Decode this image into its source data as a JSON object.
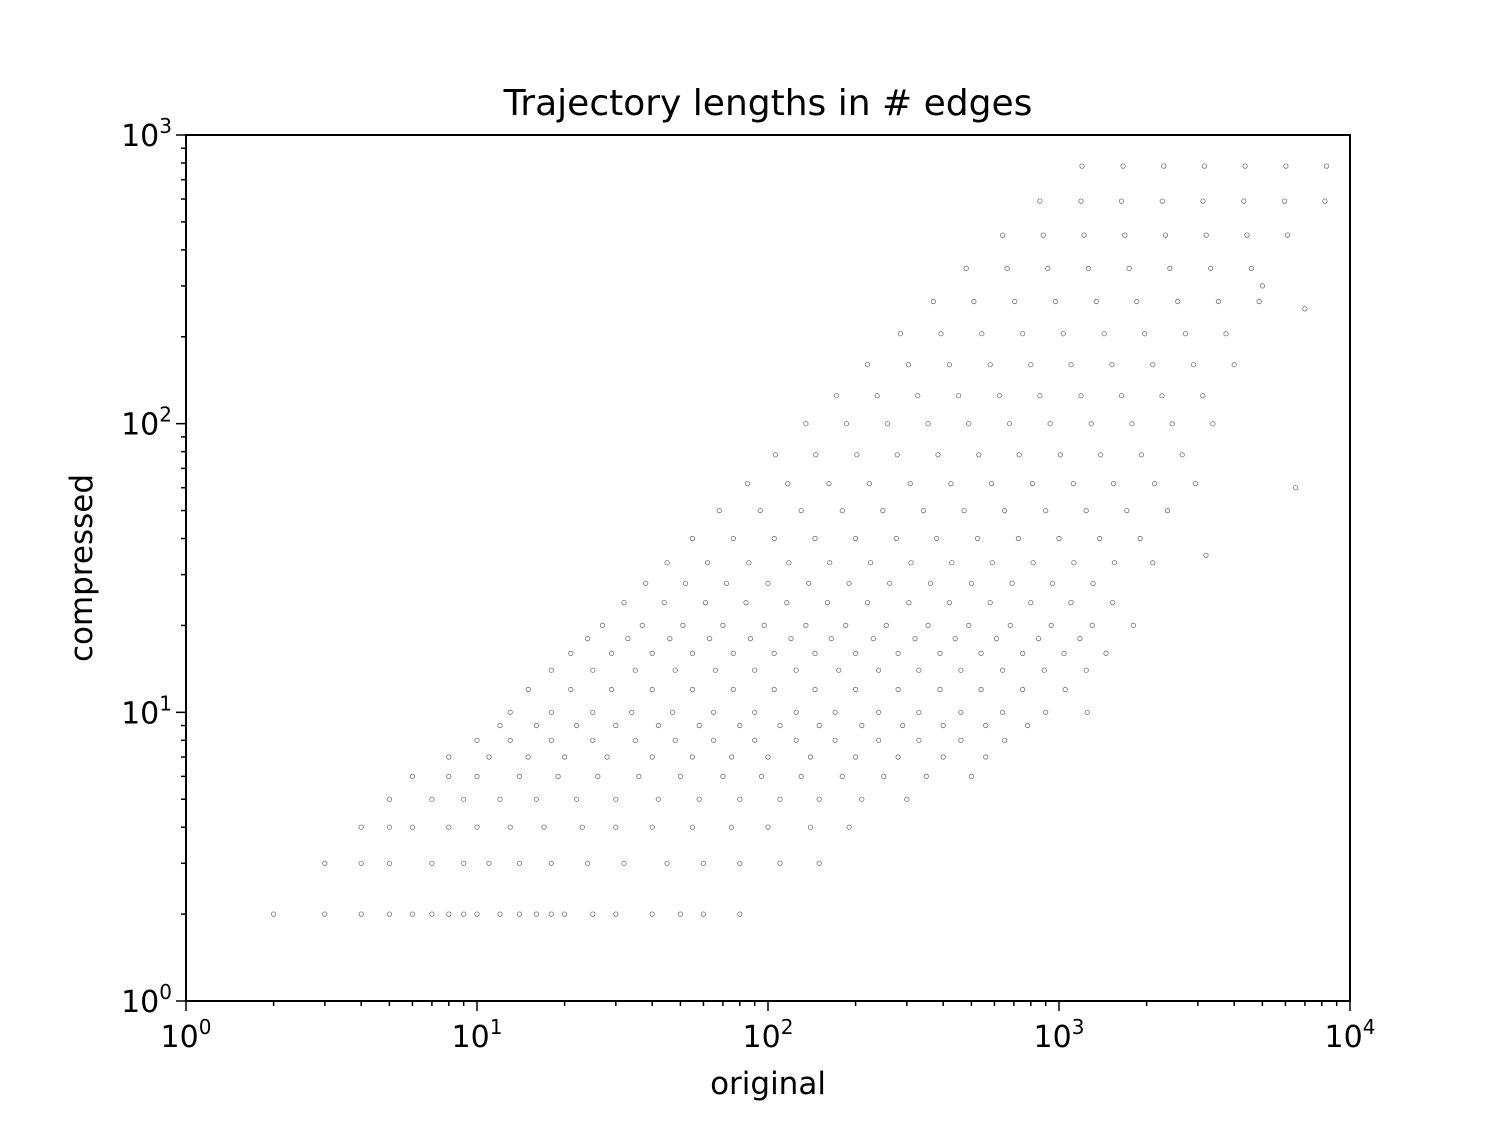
{
  "chart_data": {
    "type": "scatter",
    "title": "Trajectory lengths in # edges",
    "xlabel": "original",
    "ylabel": "compressed",
    "xscale": "log",
    "yscale": "log",
    "xlim": [
      1,
      10000
    ],
    "ylim": [
      1,
      1000
    ],
    "x_ticks": [
      {
        "value": 1,
        "base": "10",
        "exp": "0"
      },
      {
        "value": 10,
        "base": "10",
        "exp": "1"
      },
      {
        "value": 100,
        "base": "10",
        "exp": "2"
      },
      {
        "value": 1000,
        "base": "10",
        "exp": "3"
      },
      {
        "value": 10000,
        "base": "10",
        "exp": "4"
      }
    ],
    "y_ticks": [
      {
        "value": 1,
        "base": "10",
        "exp": "0"
      },
      {
        "value": 10,
        "base": "10",
        "exp": "1"
      },
      {
        "value": 100,
        "base": "10",
        "exp": "2"
      },
      {
        "value": 1000,
        "base": "10",
        "exp": "3"
      }
    ],
    "grid": false,
    "legend": "none",
    "marker_color": "#000000",
    "marker_style": "hollow-circle",
    "points": [
      [
        2,
        2
      ],
      [
        3,
        2
      ],
      [
        4,
        2
      ],
      [
        5,
        2
      ],
      [
        6,
        2
      ],
      [
        7,
        2
      ],
      [
        8,
        2
      ],
      [
        9,
        2
      ],
      [
        10,
        2
      ],
      [
        12,
        2
      ],
      [
        14,
        2
      ],
      [
        16,
        2
      ],
      [
        18,
        2
      ],
      [
        20,
        2
      ],
      [
        25,
        2
      ],
      [
        30,
        2
      ],
      [
        40,
        2
      ],
      [
        50,
        2
      ],
      [
        60,
        2
      ],
      [
        80,
        2
      ],
      [
        3,
        3
      ],
      [
        4,
        3
      ],
      [
        5,
        3
      ],
      [
        7,
        3
      ],
      [
        9,
        3
      ],
      [
        11,
        3
      ],
      [
        14,
        3
      ],
      [
        18,
        3
      ],
      [
        24,
        3
      ],
      [
        32,
        3
      ],
      [
        45,
        3
      ],
      [
        60,
        3
      ],
      [
        80,
        3
      ],
      [
        110,
        3
      ],
      [
        150,
        3
      ],
      [
        4,
        4
      ],
      [
        5,
        4
      ],
      [
        6,
        4
      ],
      [
        8,
        4
      ],
      [
        10,
        4
      ],
      [
        13,
        4
      ],
      [
        17,
        4
      ],
      [
        23,
        4
      ],
      [
        30,
        4
      ],
      [
        40,
        4
      ],
      [
        55,
        4
      ],
      [
        75,
        4
      ],
      [
        100,
        4
      ],
      [
        140,
        4
      ],
      [
        190,
        4
      ],
      [
        5,
        5
      ],
      [
        7,
        5
      ],
      [
        9,
        5
      ],
      [
        12,
        5
      ],
      [
        16,
        5
      ],
      [
        22,
        5
      ],
      [
        30,
        5
      ],
      [
        42,
        5
      ],
      [
        58,
        5
      ],
      [
        80,
        5
      ],
      [
        110,
        5
      ],
      [
        150,
        5
      ],
      [
        210,
        5
      ],
      [
        300,
        5
      ],
      [
        6,
        6
      ],
      [
        8,
        6
      ],
      [
        10,
        6
      ],
      [
        14,
        6
      ],
      [
        19,
        6
      ],
      [
        26,
        6
      ],
      [
        36,
        6
      ],
      [
        50,
        6
      ],
      [
        70,
        6
      ],
      [
        95,
        6
      ],
      [
        130,
        6
      ],
      [
        180,
        6
      ],
      [
        250,
        6
      ],
      [
        350,
        6
      ],
      [
        500,
        6
      ],
      [
        8,
        7
      ],
      [
        11,
        7
      ],
      [
        15,
        7
      ],
      [
        20,
        7
      ],
      [
        28,
        7
      ],
      [
        40,
        7
      ],
      [
        55,
        7
      ],
      [
        75,
        7
      ],
      [
        100,
        7
      ],
      [
        140,
        7
      ],
      [
        200,
        7
      ],
      [
        280,
        7
      ],
      [
        400,
        7
      ],
      [
        560,
        7
      ],
      [
        10,
        8
      ],
      [
        13,
        8
      ],
      [
        18,
        8
      ],
      [
        25,
        8
      ],
      [
        35,
        8
      ],
      [
        48,
        8
      ],
      [
        65,
        8
      ],
      [
        90,
        8
      ],
      [
        125,
        8
      ],
      [
        170,
        8
      ],
      [
        240,
        8
      ],
      [
        330,
        8
      ],
      [
        460,
        8
      ],
      [
        650,
        8
      ],
      [
        12,
        9
      ],
      [
        16,
        9
      ],
      [
        22,
        9
      ],
      [
        30,
        9
      ],
      [
        42,
        9
      ],
      [
        58,
        9
      ],
      [
        80,
        9
      ],
      [
        110,
        9
      ],
      [
        150,
        9
      ],
      [
        210,
        9
      ],
      [
        290,
        9
      ],
      [
        400,
        9
      ],
      [
        560,
        9
      ],
      [
        780,
        9
      ],
      [
        13,
        10
      ],
      [
        18,
        10
      ],
      [
        25,
        10
      ],
      [
        34,
        10
      ],
      [
        47,
        10
      ],
      [
        65,
        10
      ],
      [
        90,
        10
      ],
      [
        125,
        10
      ],
      [
        170,
        10
      ],
      [
        240,
        10
      ],
      [
        330,
        10
      ],
      [
        460,
        10
      ],
      [
        640,
        10
      ],
      [
        900,
        10
      ],
      [
        1250,
        10
      ],
      [
        15,
        12
      ],
      [
        21,
        12
      ],
      [
        29,
        12
      ],
      [
        40,
        12
      ],
      [
        55,
        12
      ],
      [
        76,
        12
      ],
      [
        105,
        12
      ],
      [
        145,
        12
      ],
      [
        200,
        12
      ],
      [
        280,
        12
      ],
      [
        390,
        12
      ],
      [
        540,
        12
      ],
      [
        750,
        12
      ],
      [
        1050,
        12
      ],
      [
        18,
        14
      ],
      [
        25,
        14
      ],
      [
        35,
        14
      ],
      [
        48,
        14
      ],
      [
        66,
        14
      ],
      [
        90,
        14
      ],
      [
        125,
        14
      ],
      [
        175,
        14
      ],
      [
        240,
        14
      ],
      [
        330,
        14
      ],
      [
        460,
        14
      ],
      [
        640,
        14
      ],
      [
        890,
        14
      ],
      [
        1240,
        14
      ],
      [
        21,
        16
      ],
      [
        29,
        16
      ],
      [
        40,
        16
      ],
      [
        55,
        16
      ],
      [
        76,
        16
      ],
      [
        105,
        16
      ],
      [
        145,
        16
      ],
      [
        200,
        16
      ],
      [
        280,
        16
      ],
      [
        390,
        16
      ],
      [
        540,
        16
      ],
      [
        750,
        16
      ],
      [
        1040,
        16
      ],
      [
        1450,
        16
      ],
      [
        24,
        18
      ],
      [
        33,
        18
      ],
      [
        46,
        18
      ],
      [
        63,
        18
      ],
      [
        87,
        18
      ],
      [
        120,
        18
      ],
      [
        165,
        18
      ],
      [
        230,
        18
      ],
      [
        320,
        18
      ],
      [
        440,
        18
      ],
      [
        610,
        18
      ],
      [
        850,
        18
      ],
      [
        1180,
        18
      ],
      [
        27,
        20
      ],
      [
        37,
        20
      ],
      [
        51,
        20
      ],
      [
        70,
        20
      ],
      [
        97,
        20
      ],
      [
        135,
        20
      ],
      [
        185,
        20
      ],
      [
        255,
        20
      ],
      [
        355,
        20
      ],
      [
        490,
        20
      ],
      [
        680,
        20
      ],
      [
        940,
        20
      ],
      [
        1300,
        20
      ],
      [
        1800,
        20
      ],
      [
        32,
        24
      ],
      [
        44,
        24
      ],
      [
        61,
        24
      ],
      [
        84,
        24
      ],
      [
        116,
        24
      ],
      [
        160,
        24
      ],
      [
        220,
        24
      ],
      [
        305,
        24
      ],
      [
        420,
        24
      ],
      [
        580,
        24
      ],
      [
        800,
        24
      ],
      [
        1100,
        24
      ],
      [
        1530,
        24
      ],
      [
        38,
        28
      ],
      [
        52,
        28
      ],
      [
        72,
        28
      ],
      [
        100,
        28
      ],
      [
        138,
        28
      ],
      [
        190,
        28
      ],
      [
        262,
        28
      ],
      [
        362,
        28
      ],
      [
        500,
        28
      ],
      [
        690,
        28
      ],
      [
        950,
        28
      ],
      [
        1310,
        28
      ],
      [
        45,
        33
      ],
      [
        62,
        33
      ],
      [
        86,
        33
      ],
      [
        118,
        33
      ],
      [
        163,
        33
      ],
      [
        225,
        33
      ],
      [
        310,
        33
      ],
      [
        428,
        33
      ],
      [
        590,
        33
      ],
      [
        815,
        33
      ],
      [
        1125,
        33
      ],
      [
        1550,
        33
      ],
      [
        2100,
        33
      ],
      [
        55,
        40
      ],
      [
        76,
        40
      ],
      [
        105,
        40
      ],
      [
        145,
        40
      ],
      [
        200,
        40
      ],
      [
        276,
        40
      ],
      [
        380,
        40
      ],
      [
        525,
        40
      ],
      [
        725,
        40
      ],
      [
        1000,
        40
      ],
      [
        1380,
        40
      ],
      [
        1900,
        40
      ],
      [
        68,
        50
      ],
      [
        94,
        50
      ],
      [
        130,
        50
      ],
      [
        180,
        50
      ],
      [
        248,
        50
      ],
      [
        342,
        50
      ],
      [
        472,
        50
      ],
      [
        650,
        50
      ],
      [
        900,
        50
      ],
      [
        1240,
        50
      ],
      [
        1710,
        50
      ],
      [
        2360,
        50
      ],
      [
        85,
        62
      ],
      [
        117,
        62
      ],
      [
        162,
        62
      ],
      [
        223,
        62
      ],
      [
        308,
        62
      ],
      [
        425,
        62
      ],
      [
        586,
        62
      ],
      [
        810,
        62
      ],
      [
        1120,
        62
      ],
      [
        1540,
        62
      ],
      [
        2130,
        62
      ],
      [
        2940,
        62
      ],
      [
        106,
        78
      ],
      [
        146,
        78
      ],
      [
        202,
        78
      ],
      [
        278,
        78
      ],
      [
        384,
        78
      ],
      [
        530,
        78
      ],
      [
        730,
        78
      ],
      [
        1010,
        78
      ],
      [
        1390,
        78
      ],
      [
        1920,
        78
      ],
      [
        2650,
        78
      ],
      [
        135,
        100
      ],
      [
        186,
        100
      ],
      [
        257,
        100
      ],
      [
        355,
        100
      ],
      [
        490,
        100
      ],
      [
        676,
        100
      ],
      [
        932,
        100
      ],
      [
        1290,
        100
      ],
      [
        1780,
        100
      ],
      [
        2450,
        100
      ],
      [
        3380,
        100
      ],
      [
        172,
        125
      ],
      [
        237,
        125
      ],
      [
        327,
        125
      ],
      [
        452,
        125
      ],
      [
        624,
        125
      ],
      [
        860,
        125
      ],
      [
        1190,
        125
      ],
      [
        1640,
        125
      ],
      [
        2260,
        125
      ],
      [
        3120,
        125
      ],
      [
        220,
        160
      ],
      [
        304,
        160
      ],
      [
        420,
        160
      ],
      [
        580,
        160
      ],
      [
        800,
        160
      ],
      [
        1100,
        160
      ],
      [
        1520,
        160
      ],
      [
        2100,
        160
      ],
      [
        2900,
        160
      ],
      [
        4000,
        160
      ],
      [
        285,
        205
      ],
      [
        393,
        205
      ],
      [
        543,
        205
      ],
      [
        750,
        205
      ],
      [
        1035,
        205
      ],
      [
        1430,
        205
      ],
      [
        1970,
        205
      ],
      [
        2720,
        205
      ],
      [
        3750,
        205
      ],
      [
        370,
        265
      ],
      [
        510,
        265
      ],
      [
        705,
        265
      ],
      [
        973,
        265
      ],
      [
        1343,
        265
      ],
      [
        1850,
        265
      ],
      [
        2560,
        265
      ],
      [
        3530,
        265
      ],
      [
        4870,
        265
      ],
      [
        480,
        345
      ],
      [
        663,
        345
      ],
      [
        915,
        345
      ],
      [
        1263,
        345
      ],
      [
        1743,
        345
      ],
      [
        2405,
        345
      ],
      [
        3320,
        345
      ],
      [
        4580,
        345
      ],
      [
        640,
        450
      ],
      [
        883,
        450
      ],
      [
        1220,
        450
      ],
      [
        1683,
        450
      ],
      [
        2323,
        450
      ],
      [
        3205,
        450
      ],
      [
        4425,
        450
      ],
      [
        6100,
        450
      ],
      [
        860,
        590
      ],
      [
        1190,
        590
      ],
      [
        1640,
        590
      ],
      [
        2265,
        590
      ],
      [
        3125,
        590
      ],
      [
        4315,
        590
      ],
      [
        5960,
        590
      ],
      [
        8200,
        590
      ],
      [
        1200,
        780
      ],
      [
        1660,
        780
      ],
      [
        2290,
        780
      ],
      [
        3160,
        780
      ],
      [
        4360,
        780
      ],
      [
        6020,
        780
      ],
      [
        8300,
        780
      ],
      [
        6500,
        60
      ],
      [
        3200,
        35
      ],
      [
        5000,
        300
      ],
      [
        7000,
        250
      ]
    ]
  }
}
